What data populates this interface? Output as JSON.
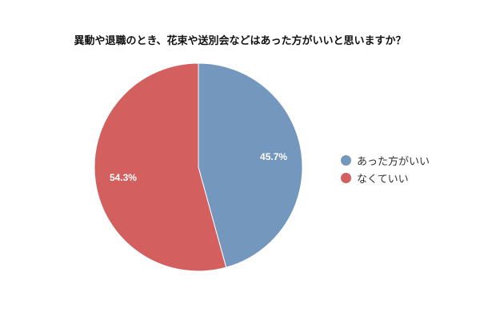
{
  "chart_data": {
    "type": "pie",
    "title": "異動や退職のとき、花束や送別会などはあった方がいいと思いますか？",
    "labels": [
      "あった方がいい",
      "なくていい"
    ],
    "values": [
      45.7,
      54.3
    ],
    "data_labels": [
      "45.7%",
      "54.3%"
    ],
    "colors": [
      "#7497bd",
      "#d35f5f"
    ],
    "legend": "right"
  }
}
